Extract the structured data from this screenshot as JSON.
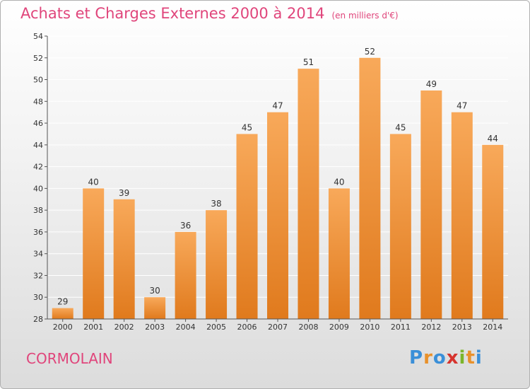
{
  "header": {
    "title": "Achats et Charges Externes 2000 à 2014",
    "unit": "(en milliers d'€)"
  },
  "footer": {
    "commune": "CORMOLAIN",
    "logo_text": "Proxiti"
  },
  "colors": {
    "bar_top": "#f8a95a",
    "bar_bottom": "#e07a1d",
    "title": "#e0457b"
  },
  "chart_data": {
    "type": "bar",
    "title": "Achats et Charges Externes 2000 à 2014",
    "subtitle": "(en milliers d'€)",
    "categories": [
      "2000",
      "2001",
      "2002",
      "2003",
      "2004",
      "2005",
      "2006",
      "2007",
      "2008",
      "2009",
      "2010",
      "2011",
      "2012",
      "2013",
      "2014"
    ],
    "values": [
      29,
      40,
      39,
      30,
      36,
      38,
      45,
      47,
      51,
      40,
      52,
      45,
      49,
      47,
      44
    ],
    "ylim": [
      28,
      54
    ],
    "yticks": [
      28,
      30,
      32,
      34,
      36,
      38,
      40,
      42,
      44,
      46,
      48,
      50,
      52,
      54
    ],
    "grid": true,
    "xlabel": "",
    "ylabel": ""
  }
}
